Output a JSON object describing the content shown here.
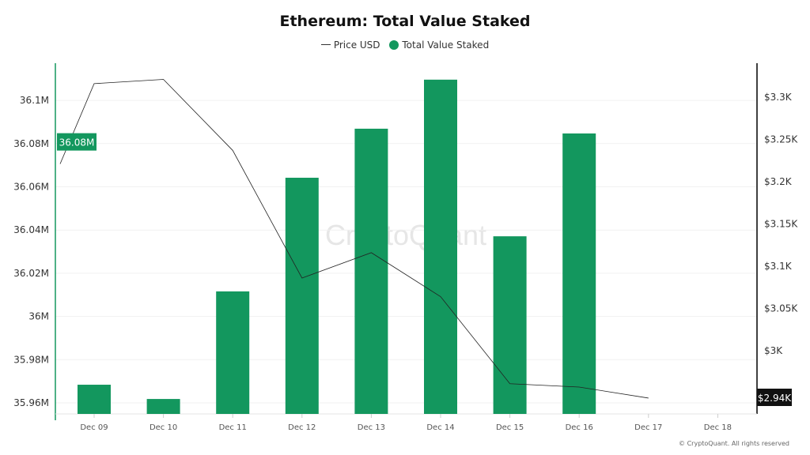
{
  "chart_data": {
    "type": "bar",
    "title": "Ethereum: Total Value Staked",
    "categories": [
      "Dec 09",
      "Dec 10",
      "Dec 11",
      "Dec 12",
      "Dec 13",
      "Dec 14",
      "Dec 15",
      "Dec 16",
      "Dec 17",
      "Dec 18"
    ],
    "series": [
      {
        "name": "Total Value Staked",
        "type": "bar",
        "axis": "left",
        "unit": "M",
        "values": [
          35.9684,
          35.9618,
          36.0116,
          36.0642,
          36.0869,
          36.1096,
          36.0371,
          36.0847,
          null,
          null
        ]
      },
      {
        "name": "Price USD",
        "type": "line",
        "axis": "right",
        "unit": "K USD",
        "x": [
          "Dec 08",
          "Dec 09",
          "Dec 10",
          "Dec 11",
          "Dec 12",
          "Dec 13",
          "Dec 14",
          "Dec 15",
          "Dec 16",
          "Dec 17"
        ],
        "values": [
          3.221,
          3.316,
          3.321,
          3.237,
          3.086,
          3.116,
          3.064,
          2.961,
          2.957,
          2.944
        ]
      }
    ],
    "left_axis": {
      "ticks": [
        "36.1M",
        "36.08M",
        "36.06M",
        "36.04M",
        "36.02M",
        "36M",
        "35.98M",
        "35.96M"
      ],
      "tick_values": [
        36.1,
        36.08,
        36.06,
        36.04,
        36.02,
        36.0,
        35.98,
        35.96
      ],
      "range": [
        35.955,
        36.13
      ],
      "current_label": "36.08M"
    },
    "right_axis": {
      "ticks": [
        "$3.3K",
        "$3.25K",
        "$3.2K",
        "$3.15K",
        "$3.1K",
        "$3.05K",
        "$3K"
      ],
      "tick_values": [
        3.3,
        3.25,
        3.2,
        3.15,
        3.1,
        3.05,
        3.0
      ],
      "current_label": "$2.94K"
    },
    "grid": true,
    "legend": "top-center",
    "colors": {
      "bar": "#13975e",
      "line": "#222222",
      "left_axis": "#13975e",
      "right_axis": "#000000"
    }
  },
  "watermark": "CryptoQuant",
  "footer": "© CryptoQuant. All rights reserved"
}
